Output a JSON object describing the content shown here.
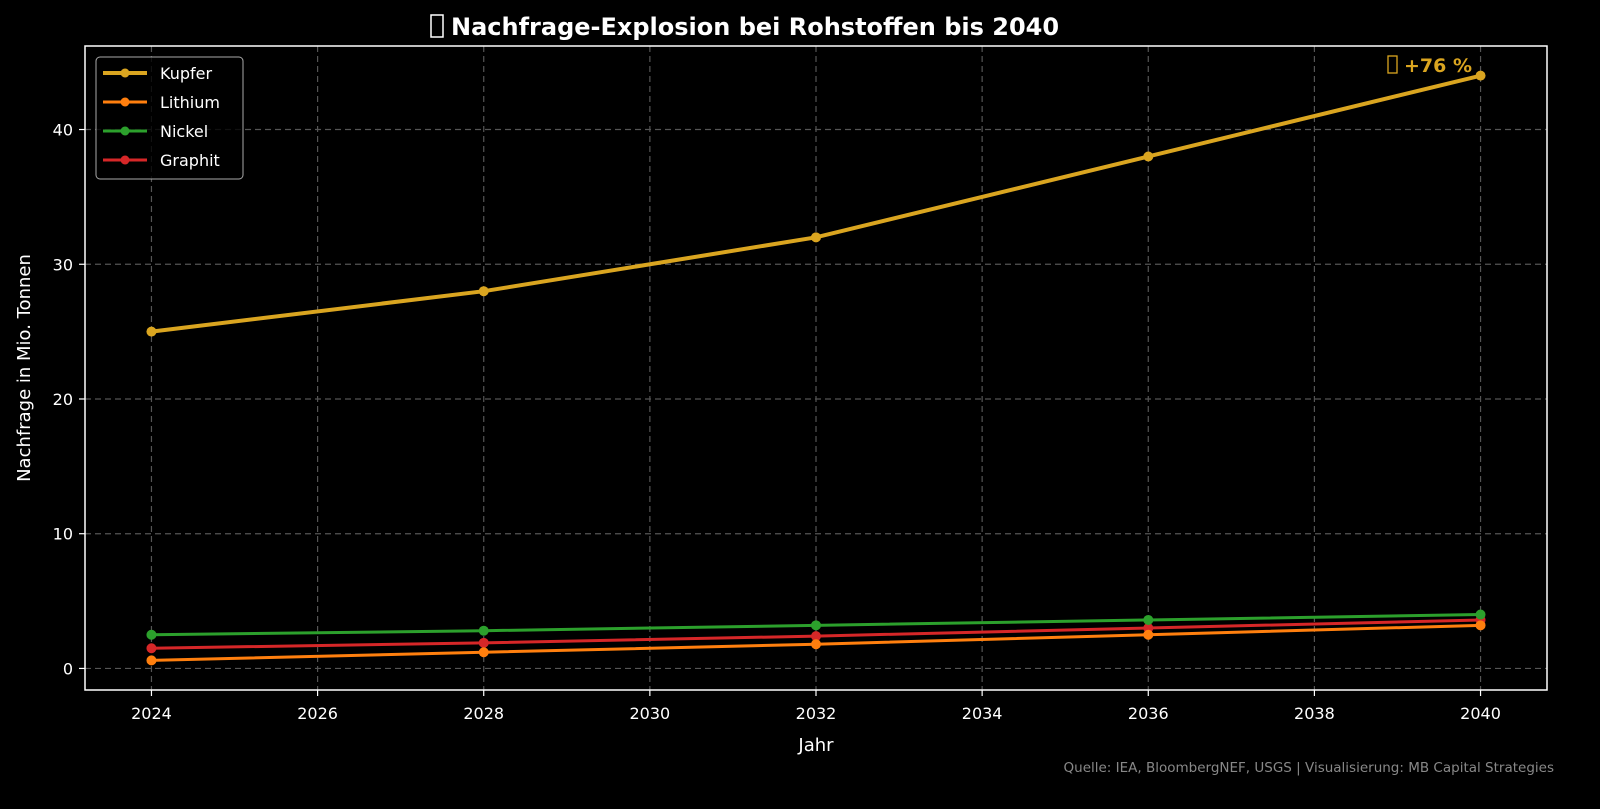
{
  "chart_data": {
    "type": "line",
    "title": "Nachfrage-Explosion bei Rohstoffen bis 2040",
    "title_icon": "missing-glyph-box",
    "xlabel": "Jahr",
    "ylabel": "Nachfrage in Mio. Tonnen",
    "xlim": [
      2023.2,
      2040.8
    ],
    "ylim": [
      -1.6,
      46.2
    ],
    "xticks": [
      2024,
      2026,
      2028,
      2030,
      2032,
      2034,
      2036,
      2038,
      2040
    ],
    "yticks": [
      0,
      10,
      20,
      30,
      40
    ],
    "grid": true,
    "legend_placement": "top-left",
    "x": [
      2024,
      2028,
      2032,
      2036,
      2040
    ],
    "series": [
      {
        "name": "Kupfer",
        "color": "#DAA520",
        "values": [
          25,
          28,
          32,
          38,
          44
        ]
      },
      {
        "name": "Lithium",
        "color": "#FF7F0E",
        "values": [
          0.6,
          1.2,
          1.8,
          2.5,
          3.2
        ]
      },
      {
        "name": "Nickel",
        "color": "#2CA02C",
        "values": [
          2.5,
          2.8,
          3.2,
          3.6,
          4.0
        ]
      },
      {
        "name": "Graphit",
        "color": "#D62728",
        "values": [
          1.5,
          1.9,
          2.4,
          3.0,
          3.6
        ]
      }
    ],
    "annotation": {
      "text": "+76 %",
      "icon": "missing-glyph-box",
      "x": 2040,
      "y": 44,
      "color": "#DAA520"
    },
    "source": "Quelle: IEA, BloombergNEF, USGS | Visualisierung: MB Capital Strategies"
  }
}
